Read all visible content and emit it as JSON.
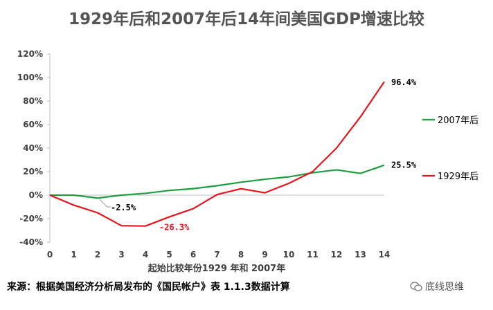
{
  "chart_data": {
    "type": "line",
    "title": "1929年后和2007年后14年间美国GDP增速比较",
    "xlabel": "起始比较年份1929 年和 2007年",
    "ylabel": "",
    "x": [
      0,
      1,
      2,
      3,
      4,
      5,
      6,
      7,
      8,
      9,
      10,
      11,
      12,
      13,
      14
    ],
    "ylim": [
      -40,
      120
    ],
    "y_ticks": [
      "-40%",
      "-20%",
      "0%",
      "20%",
      "40%",
      "60%",
      "80%",
      "100%",
      "120%"
    ],
    "y_tick_values": [
      -40,
      -20,
      0,
      20,
      40,
      60,
      80,
      100,
      120
    ],
    "x_ticks": [
      "0",
      "1",
      "2",
      "3",
      "4",
      "5",
      "6",
      "7",
      "8",
      "9",
      "10",
      "11",
      "12",
      "13",
      "14"
    ],
    "grid": false,
    "legend_position": "right",
    "series": [
      {
        "name": "2007年后",
        "color": "#1e9e3e",
        "values": [
          0,
          0,
          -2.5,
          0,
          1.5,
          4,
          5.5,
          8,
          11,
          13.5,
          15.5,
          19,
          21.5,
          18.5,
          25.5
        ]
      },
      {
        "name": "1929年后",
        "color": "#e8141c",
        "values": [
          0,
          -8.5,
          -15,
          -26,
          -26.3,
          -18.5,
          -11.5,
          0.5,
          5.5,
          2,
          10,
          20,
          40,
          66.5,
          96.4
        ]
      }
    ],
    "annotations": [
      {
        "text": "-2.5%",
        "series": "2007年后",
        "x": 2,
        "color": "#000000"
      },
      {
        "text": "-26.3%",
        "series": "1929年后",
        "x": 4,
        "color": "#e8141c"
      },
      {
        "text": "96.4%",
        "series": "1929年后",
        "x": 14,
        "color": "#000000"
      },
      {
        "text": "25.5%",
        "series": "2007年后",
        "x": 14,
        "color": "#000000"
      }
    ]
  },
  "footer": {
    "source": "来源：根据美国经济分析局发布的《国民帐户》表 1.1.3数据计算",
    "watermark": "底线思维"
  }
}
